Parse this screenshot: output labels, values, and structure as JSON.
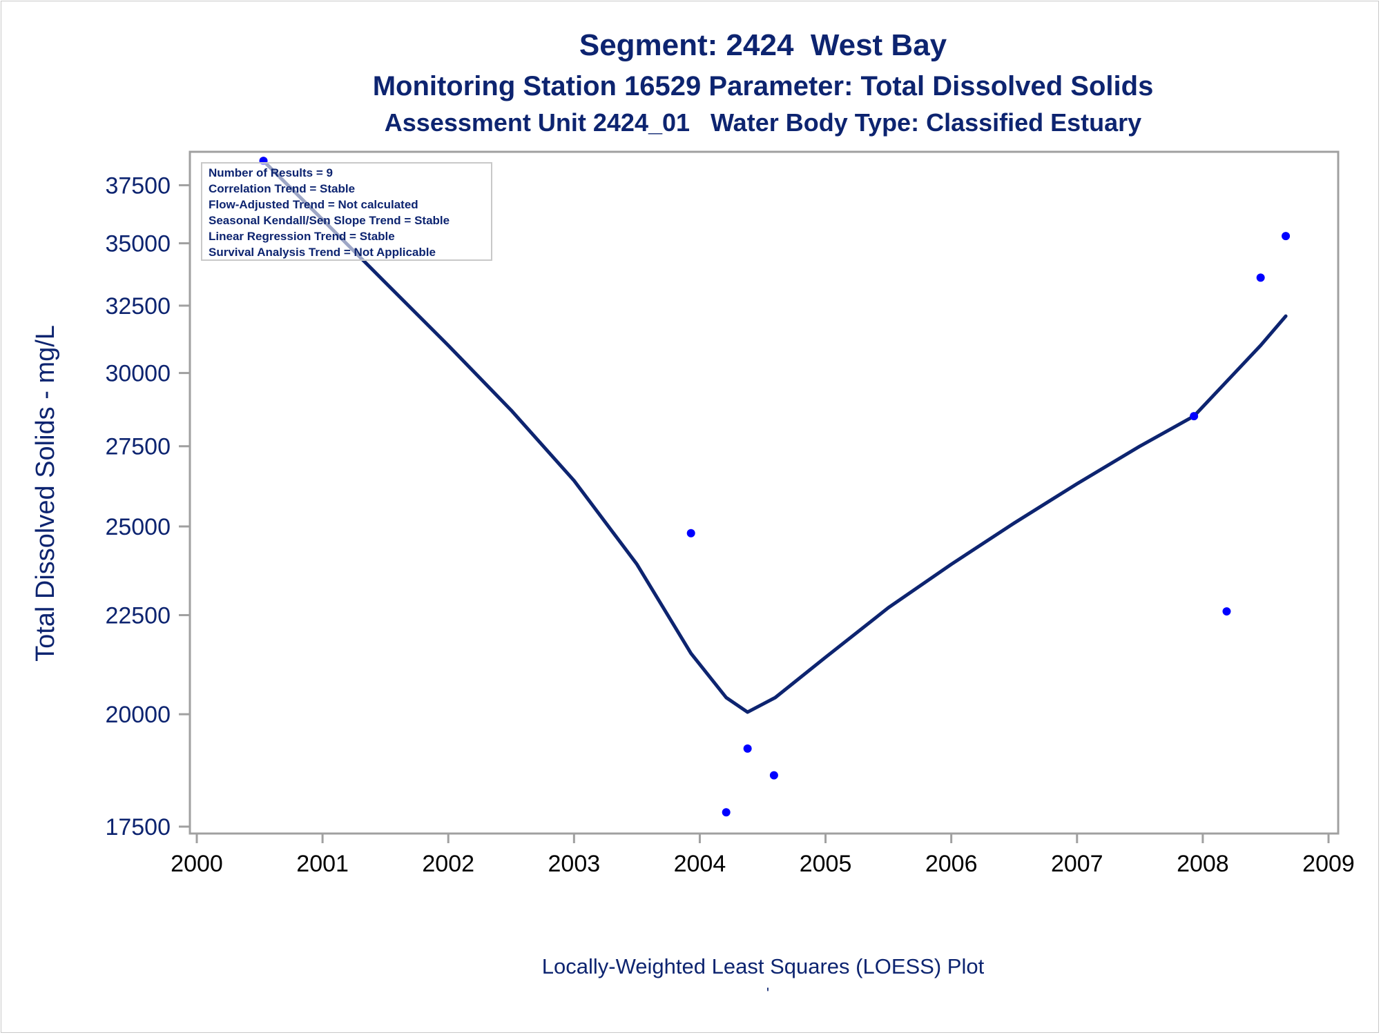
{
  "chart_data": {
    "type": "scatter",
    "title": "Segment: 2424  West Bay",
    "subtitle": "Monitoring Station 16529 Parameter: Total Dissolved Solids",
    "subtitle2": "Assessment Unit 2424_01   Water Body Type: Classified Estuary",
    "xlabel": "",
    "ylabel": "Total Dissolved Solids - mg/L",
    "footnote": "Locally-Weighted Least Squares (LOESS) Plot",
    "footnote_mark": "'",
    "x_ticks": [
      "2000",
      "2001",
      "2002",
      "2003",
      "2004",
      "2005",
      "2006",
      "2007",
      "2008",
      "2009"
    ],
    "y_ticks": [
      "17500",
      "20000",
      "22500",
      "25000",
      "27500",
      "30000",
      "32500",
      "35000",
      "37500"
    ],
    "xlim": [
      2000,
      2009.1
    ],
    "ylim": [
      17500,
      38700
    ],
    "y_scale": "log",
    "grid": false,
    "legend": "none",
    "colors": {
      "text": "#0d2470",
      "points": "#0000ff",
      "line": "#0d2470",
      "axis": "#a0a0a0"
    },
    "series": [
      {
        "type": "scatter",
        "x": [
          2000.53,
          2003.93,
          2004.21,
          2004.38,
          2004.59,
          2007.93,
          2008.19,
          2008.46,
          2008.66
        ],
        "y": [
          38600,
          24800,
          17800,
          19200,
          18600,
          28500,
          22600,
          33600,
          35300
        ]
      },
      {
        "type": "line",
        "x": [
          2000.53,
          2001.0,
          2001.5,
          2002.0,
          2002.5,
          2003.0,
          2003.5,
          2003.93,
          2004.21,
          2004.38,
          2004.6,
          2005.0,
          2005.5,
          2006.0,
          2006.5,
          2007.0,
          2007.5,
          2007.93,
          2008.19,
          2008.46,
          2008.66
        ],
        "y": [
          38600,
          36000,
          33400,
          31000,
          28700,
          26400,
          23900,
          21500,
          20400,
          20050,
          20400,
          21400,
          22700,
          23900,
          25100,
          26300,
          27500,
          28500,
          29700,
          31000,
          32100
        ]
      }
    ],
    "annotation_box": {
      "position": "top-left",
      "lines": [
        "Number of Results = 9",
        "Correlation Trend = Stable",
        "Flow-Adjusted Trend = Not calculated",
        "Seasonal Kendall/Sen Slope Trend = Stable",
        "Linear Regression Trend = Stable",
        "Survival Analysis Trend = Not Applicable"
      ]
    }
  }
}
